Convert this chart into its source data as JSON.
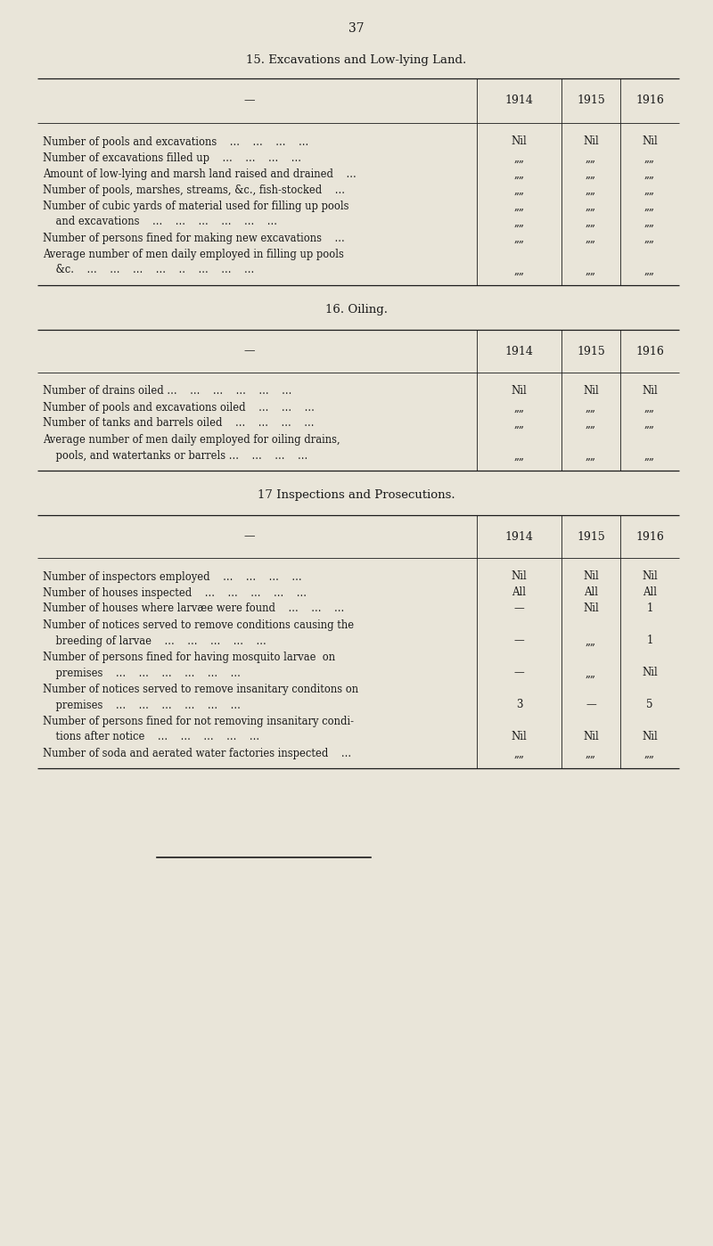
{
  "page_number": "37",
  "bg_color": "#e9e5d9",
  "text_color": "#1a1a1a",
  "section1_title": "15. Excavations and Low-lying Land.",
  "section2_title": "16. Oiling.",
  "section3_title": "17 Inspections and Prosecutions.",
  "years_header": [
    "1914",
    "1915",
    "1916"
  ],
  "s1_rows": [
    [
      "Number of pools and excavations    ...    ...    ...    ...",
      "Nil",
      "Nil",
      "Nil"
    ],
    [
      "Number of excavations filled up    ...    ...    ...    ...",
      "„„",
      "„„",
      "„„"
    ],
    [
      "Amount of low-lying and marsh land raised and drained    ...",
      "„„",
      "„„",
      "„„"
    ],
    [
      "Number of pools, marshes, streams, &c., fish-stocked    ...",
      "„„",
      "„„",
      "„„"
    ],
    [
      "Number of cubic yards of material used for filling up pools",
      "„„",
      "„„",
      "„„"
    ],
    [
      "    and excavations    ...    ...    ...    ...    ...    ...",
      "„„",
      "„„",
      "„„"
    ],
    [
      "Number of persons fined for making new excavations    ...",
      "„„",
      "„„",
      "„„"
    ],
    [
      "Average number of men daily employed in filling up pools",
      "",
      "",
      ""
    ],
    [
      "    &c.    ...    ...    ...    ...    ..    ...    ...    ...",
      "„„",
      "„„",
      "„„"
    ]
  ],
  "s2_rows": [
    [
      "Number of drains oiled ...    ...    ...    ...    ...    ...",
      "Nil",
      "Nil",
      "Nil"
    ],
    [
      "Number of pools and excavations oiled    ...    ...    ...",
      "„„",
      "„„",
      "„„"
    ],
    [
      "Number of tanks and barrels oiled    ...    ...    ...    ...",
      "„„",
      "„„",
      "„„"
    ],
    [
      "Average number of men daily employed for oiling drains,",
      "",
      "",
      ""
    ],
    [
      "    pools, and watertanks or barrels ...    ...    ...    ...",
      "„„",
      "„„",
      "„„"
    ]
  ],
  "s3_rows": [
    [
      "Number of inspectors employed    ...    ...    ...    ...",
      "Nil",
      "Nil",
      "Nil"
    ],
    [
      "Number of houses inspected    ...    ...    ...    ...    ...",
      "All",
      "All",
      "All"
    ],
    [
      "Number of houses where larvæe were found    ...    ...    ...",
      "—",
      "Nil",
      "1"
    ],
    [
      "Number of notices served to remove conditions causing the",
      "",
      "",
      ""
    ],
    [
      "    breeding of larvae    ...    ...    ...    ...    ...",
      "—",
      "„„",
      "1"
    ],
    [
      "Number of persons fined for having mosquito larvae  on",
      "",
      "",
      ""
    ],
    [
      "    premises    ...    ...    ...    ...    ...    ...",
      "—",
      "„„",
      "Nil"
    ],
    [
      "Number of notices served to remove insanitary conditons on",
      "",
      "",
      ""
    ],
    [
      "    premises    ...    ...    ...    ...    ...    ...",
      "3",
      "—",
      "5"
    ],
    [
      "Number of persons fined for not removing insanitary condi-",
      "",
      "",
      ""
    ],
    [
      "    tions after notice    ...    ...    ...    ...    ...",
      "Nil",
      "Nil",
      "Nil"
    ],
    [
      "Number of soda and aerated water factories inspected    ...",
      "„„",
      "„„",
      "„„"
    ]
  ],
  "footer_line": [
    0.22,
    0.52
  ]
}
